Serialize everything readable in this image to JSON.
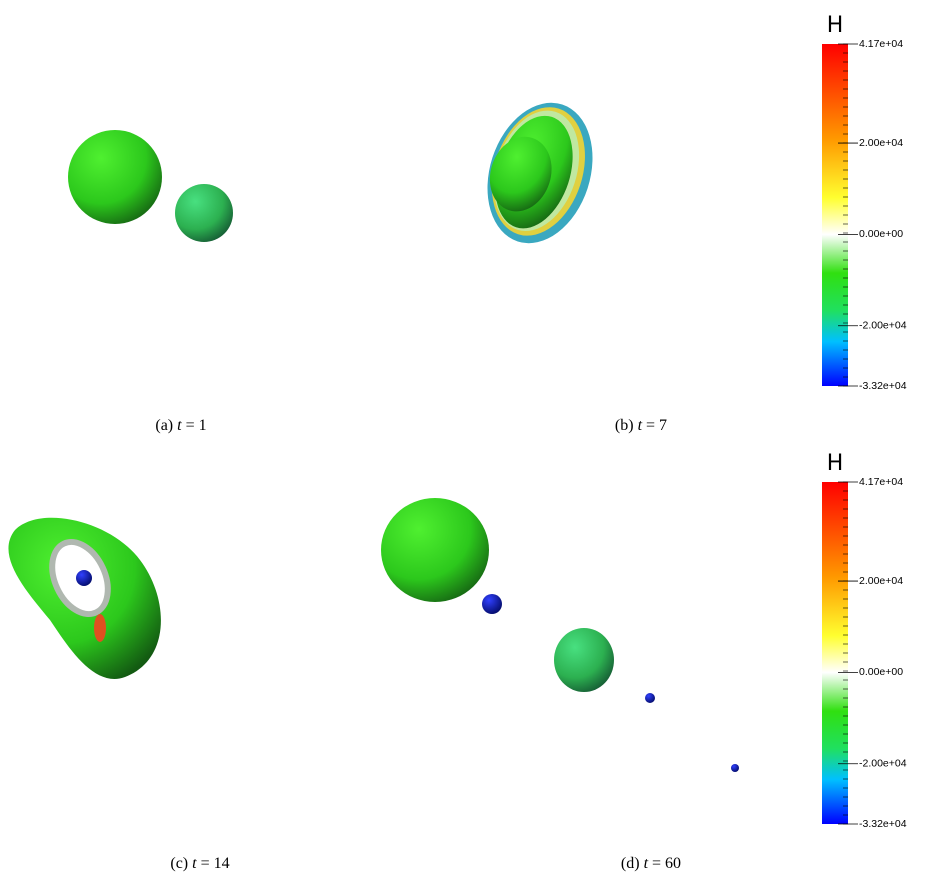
{
  "panels": [
    {
      "caption": {
        "prefix": "(a)",
        "variable": "t",
        "suffix": "= 1"
      }
    },
    {
      "caption": {
        "prefix": "(b)",
        "variable": "t",
        "suffix": "= 7"
      }
    },
    {
      "caption": {
        "prefix": "(c)",
        "variable": "t",
        "suffix": "= 14"
      }
    },
    {
      "caption": {
        "prefix": "(d)",
        "variable": "t",
        "suffix": "= 60"
      }
    }
  ],
  "colorbars": [
    {
      "title": "H",
      "range": [
        -33200,
        41700
      ],
      "ticks": [
        {
          "value": 41700,
          "label": "4.17e+04"
        },
        {
          "value": 20000,
          "label": "2.00e+04"
        },
        {
          "value": 0,
          "label": "0.00e+00"
        },
        {
          "value": -20000,
          "label": "-2.00e+04"
        },
        {
          "value": -33200,
          "label": "-3.32e+04"
        }
      ]
    },
    {
      "title": "H",
      "range": [
        -33200,
        41700
      ],
      "ticks": [
        {
          "value": 41700,
          "label": "4.17e+04"
        },
        {
          "value": 20000,
          "label": "2.00e+04"
        },
        {
          "value": 0,
          "label": "0.00e+00"
        },
        {
          "value": -20000,
          "label": "-2.00e+04"
        },
        {
          "value": -33200,
          "label": "-3.32e+04"
        }
      ]
    }
  ]
}
